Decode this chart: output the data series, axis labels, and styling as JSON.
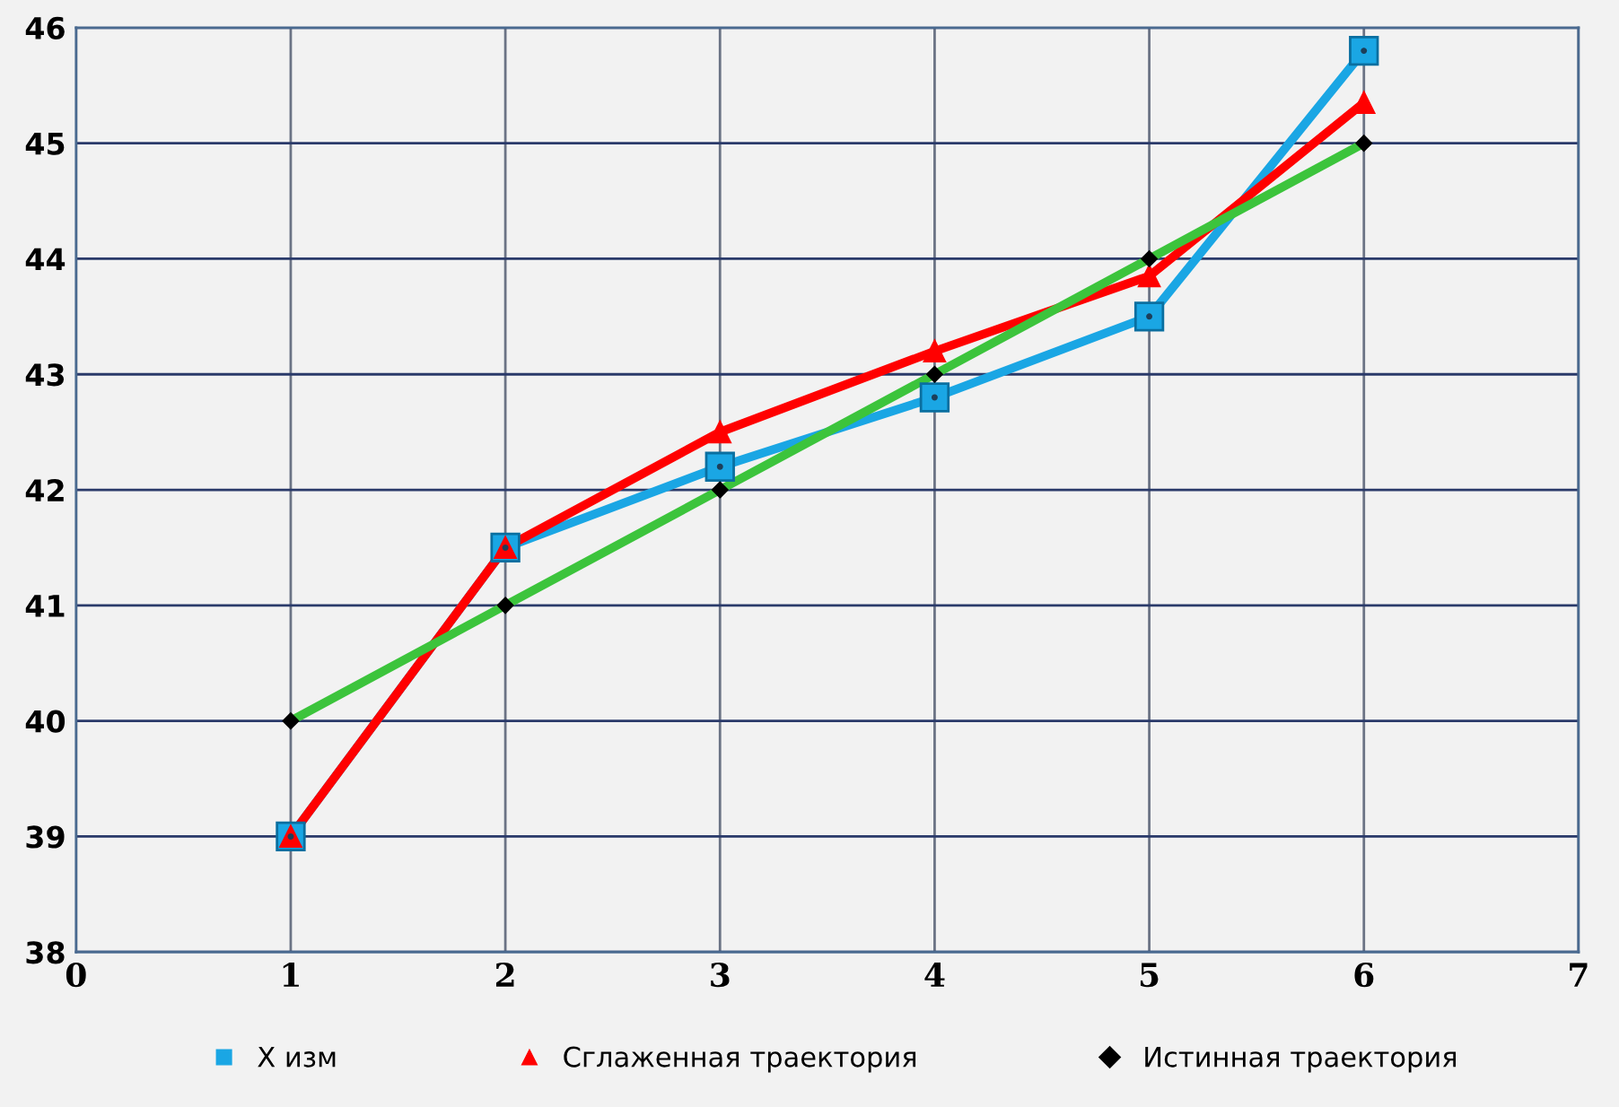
{
  "chart_data": {
    "type": "line",
    "x": [
      1,
      2,
      3,
      4,
      5,
      6
    ],
    "series": [
      {
        "name": "X изм",
        "color": "#1aa6e4",
        "marker": "square",
        "values": [
          39,
          41.5,
          42.2,
          42.8,
          43.5,
          45.8
        ]
      },
      {
        "name": "Сглаженная траектория",
        "color": "#ff0000",
        "marker": "triangle",
        "values": [
          39,
          41.5,
          42.5,
          43.2,
          43.85,
          45.35
        ]
      },
      {
        "name": "Истинная траектория",
        "color": "#3cc43c",
        "marker": "diamond",
        "values": [
          40,
          41,
          42,
          43,
          44,
          45
        ]
      }
    ],
    "xlim": [
      0,
      7
    ],
    "xticks": [
      0,
      1,
      2,
      3,
      4,
      5,
      6,
      7
    ],
    "ylim": [
      38,
      46
    ],
    "yticks": [
      38,
      39,
      40,
      41,
      42,
      43,
      44,
      45,
      46
    ],
    "grid": true,
    "legend": "bottom",
    "line_style": "solid"
  }
}
